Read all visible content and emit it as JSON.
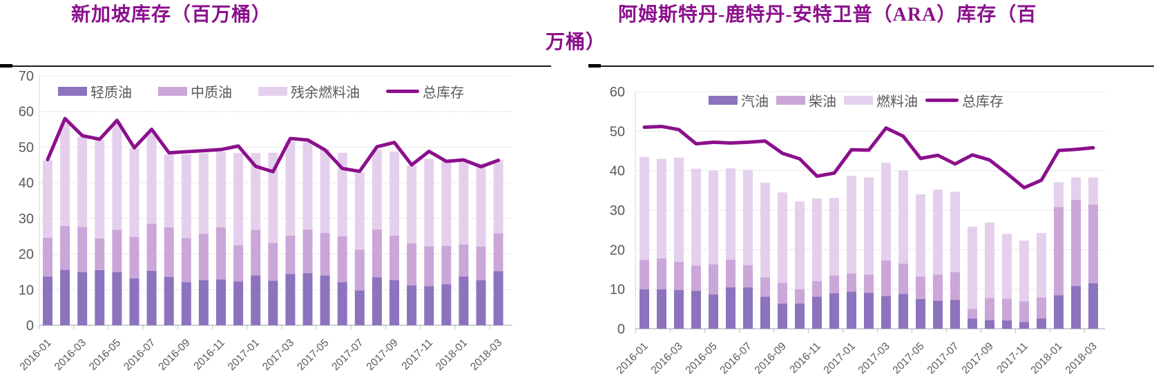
{
  "figures": [
    {
      "title": "新加坡库存（百万桶）",
      "title_lines": [
        "新加坡库存（百万桶）",
        ""
      ]
    },
    {
      "title": "阿姆斯特丹-鹿特丹-安特卫普（ARA）库存（百万桶）",
      "title_lines": [
        "阿姆斯特丹-鹿特丹-安特卫普（ARA）库存（百",
        "万桶）"
      ]
    }
  ],
  "colors": {
    "title": "#8B108C",
    "axis_text": "#595959",
    "grid": "#CFCFCF",
    "axis_line": "#BFBFBF",
    "rule": "#000000"
  },
  "chart_data": [
    {
      "type": "bar+line",
      "stacked": true,
      "title": "新加坡库存（百万桶）",
      "legend_position": "top",
      "grid": true,
      "ylim": [
        0,
        70
      ],
      "y_step": 10,
      "x_label_every": 2,
      "categories": [
        "2016-01",
        "2016-02",
        "2016-03",
        "2016-04",
        "2016-05",
        "2016-06",
        "2016-07",
        "2016-08",
        "2016-09",
        "2016-10",
        "2016-11",
        "2016-12",
        "2017-01",
        "2017-02",
        "2017-03",
        "2017-04",
        "2017-05",
        "2017-06",
        "2017-07",
        "2017-08",
        "2017-09",
        "2017-10",
        "2017-11",
        "2017-12",
        "2018-01",
        "2018-02",
        "2018-03"
      ],
      "series": [
        {
          "name": "轻质油",
          "type": "bar",
          "color": "#8C73BE",
          "values": [
            13.7,
            15.6,
            14.9,
            15.5,
            14.9,
            13.2,
            15.3,
            13.6,
            12.1,
            12.7,
            12.9,
            12.3,
            14.0,
            12.5,
            14.4,
            14.6,
            14.0,
            12.1,
            9.8,
            13.5,
            12.7,
            11.2,
            11.0,
            11.5,
            13.7,
            12.7,
            15.2
          ]
        },
        {
          "name": "中质油",
          "type": "bar",
          "color": "#CBA6D8",
          "values": [
            10.9,
            12.3,
            12.7,
            8.9,
            11.9,
            11.6,
            13.2,
            13.9,
            12.4,
            13.0,
            14.6,
            10.2,
            12.8,
            10.6,
            10.8,
            12.3,
            11.9,
            12.9,
            11.4,
            13.4,
            12.5,
            11.8,
            11.2,
            10.8,
            9.0,
            9.4,
            10.6
          ]
        },
        {
          "name": "残余燃料油",
          "type": "bar",
          "color": "#E4D0EC",
          "values": [
            21.7,
            28.7,
            25.3,
            27.6,
            30.2,
            24.8,
            25.8,
            20.4,
            23.5,
            22.6,
            21.2,
            25.8,
            21.5,
            25.3,
            26.4,
            24.5,
            23.6,
            23.4,
            21.7,
            22.4,
            23.5,
            21.8,
            24.5,
            23.9,
            23.1,
            23.3,
            20.6
          ]
        },
        {
          "name": "总库存",
          "type": "line",
          "color": "#8B108C",
          "values": [
            46.5,
            58.0,
            53.2,
            52.2,
            57.5,
            49.8,
            55.0,
            48.4,
            48.7,
            49.0,
            49.3,
            50.3,
            44.6,
            43.1,
            52.4,
            52.0,
            49.2,
            44.0,
            43.2,
            50.1,
            51.3,
            45.0,
            48.8,
            46.0,
            46.4,
            44.5,
            46.3
          ]
        }
      ]
    },
    {
      "type": "bar+line",
      "stacked": true,
      "title": "阿姆斯特丹-鹿特丹-安特卫普（ARA）库存（百万桶）",
      "legend_position": "top",
      "grid": true,
      "ylim": [
        0,
        60
      ],
      "y_step": 10,
      "x_label_every": 2,
      "categories": [
        "2016-01",
        "2016-02",
        "2016-03",
        "2016-04",
        "2016-05",
        "2016-06",
        "2016-07",
        "2016-08",
        "2016-09",
        "2016-10",
        "2016-11",
        "2016-12",
        "2017-01",
        "2017-02",
        "2017-03",
        "2017-04",
        "2017-05",
        "2017-06",
        "2017-07",
        "2017-08",
        "2017-09",
        "2017-10",
        "2017-11",
        "2017-12",
        "2018-01",
        "2018-02",
        "2018-03"
      ],
      "series": [
        {
          "name": "汽油",
          "type": "bar",
          "color": "#8C73BE",
          "values": [
            10.0,
            10.0,
            9.8,
            9.6,
            8.7,
            10.5,
            10.5,
            8.1,
            6.4,
            6.4,
            8.1,
            9.0,
            9.4,
            9.1,
            8.3,
            8.8,
            7.5,
            7.1,
            7.3,
            2.6,
            2.2,
            2.1,
            1.7,
            2.6,
            8.5,
            10.8,
            11.5
          ]
        },
        {
          "name": "柴油",
          "type": "bar",
          "color": "#CBA6D8",
          "values": [
            7.4,
            7.8,
            7.1,
            6.4,
            7.6,
            7.0,
            5.6,
            4.9,
            5.2,
            3.6,
            4.0,
            4.5,
            4.6,
            4.6,
            9.0,
            7.7,
            5.7,
            6.6,
            7.0,
            2.4,
            5.6,
            5.5,
            5.2,
            5.3,
            22.3,
            21.8,
            19.9
          ]
        },
        {
          "name": "燃料油",
          "type": "bar",
          "color": "#E4D0EC",
          "values": [
            26.1,
            25.2,
            26.4,
            24.5,
            23.8,
            23.1,
            24.1,
            24.0,
            22.9,
            22.2,
            20.9,
            19.6,
            24.7,
            24.6,
            24.7,
            23.6,
            20.8,
            21.5,
            20.4,
            20.8,
            19.1,
            16.4,
            15.4,
            16.3,
            6.3,
            5.7,
            6.9
          ]
        },
        {
          "name": "总库存",
          "type": "line",
          "color": "#8B108C",
          "values": [
            51.0,
            51.2,
            50.4,
            46.8,
            47.2,
            47.0,
            47.2,
            47.5,
            44.4,
            43.0,
            38.6,
            39.4,
            45.3,
            45.2,
            50.8,
            48.7,
            43.1,
            43.9,
            41.7,
            44.0,
            42.7,
            39.3,
            35.7,
            37.6,
            45.1,
            45.4,
            45.8
          ]
        }
      ]
    }
  ]
}
